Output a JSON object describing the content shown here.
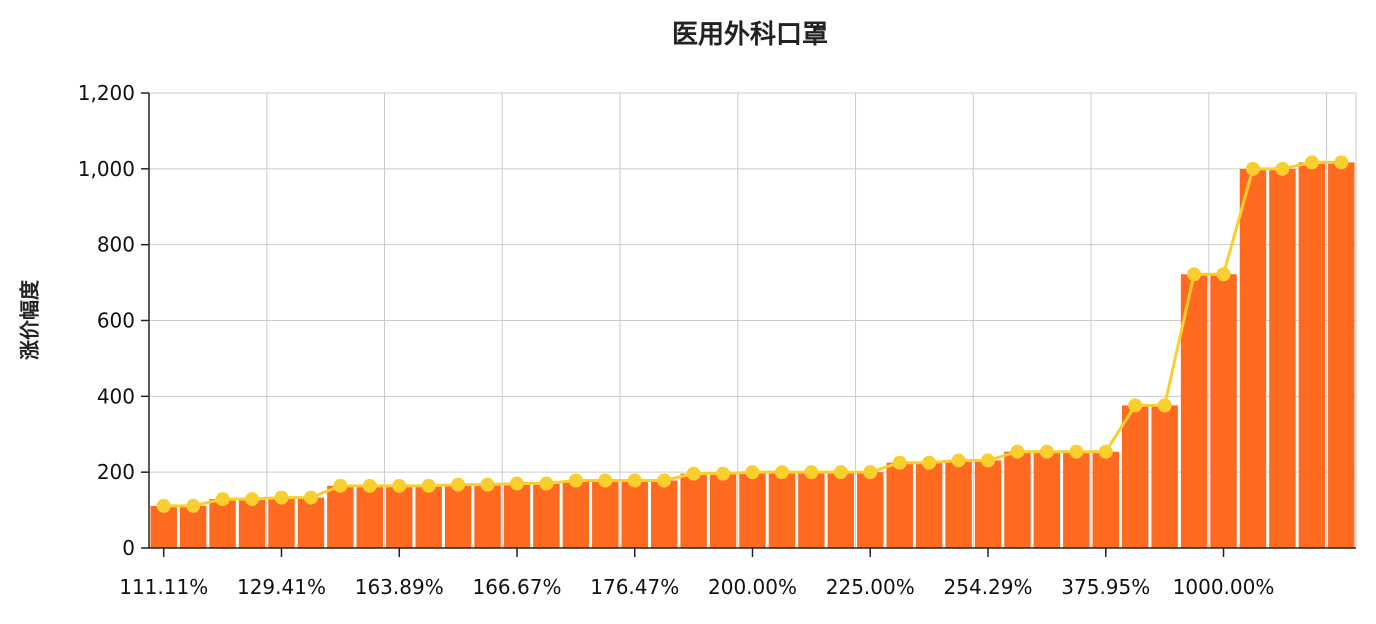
{
  "chart_data": {
    "type": "bar",
    "title": "医用外科口罩",
    "ylabel": "涨价幅度",
    "xlabel": "",
    "ylim": [
      0,
      1200
    ],
    "yticks": [
      "0",
      "200",
      "400",
      "600",
      "800",
      "1,000",
      "1,200"
    ],
    "grid": true,
    "x_tick_labels": [
      "111.11%",
      "129.41%",
      "163.89%",
      "166.67%",
      "176.47%",
      "200.00%",
      "225.00%",
      "254.29%",
      "375.95%",
      "1000.00%"
    ],
    "bar_color": "#ff6a21",
    "line_color": "#f9cf2e",
    "values": [
      111,
      111,
      129,
      129,
      133,
      133,
      164,
      164,
      164,
      164,
      167,
      167,
      170,
      170,
      178,
      178,
      178,
      178,
      196,
      196,
      200,
      200,
      200,
      200,
      200,
      225,
      225,
      231,
      231,
      254,
      254,
      254,
      254,
      376,
      376,
      722,
      722,
      1000,
      1000,
      1017,
      1017
    ]
  }
}
